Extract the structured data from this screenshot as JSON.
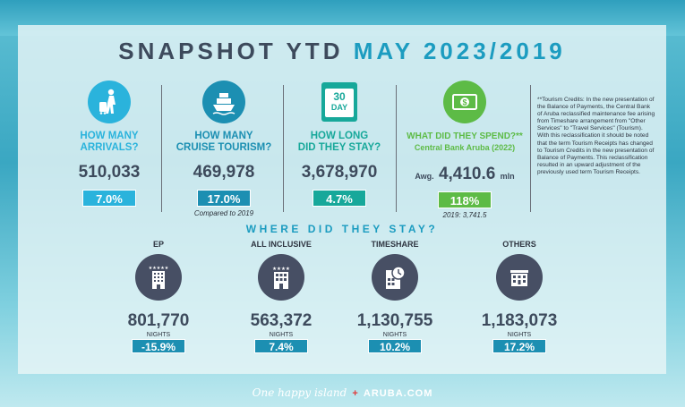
{
  "title": {
    "prefix": "SNAPSHOT YTD",
    "accent": "MAY 2023/2019"
  },
  "colors": {
    "arrivals": "#2ab3dc",
    "cruise": "#1c8fb2",
    "stay": "#17a89a",
    "spend": "#5dbb46",
    "dark": "#474f64"
  },
  "stats": [
    {
      "q1": "HOW MANY",
      "q2": "ARRIVALS?",
      "value": "510,033",
      "badge": "7.0%",
      "icon": "traveler-icon"
    },
    {
      "q1": "HOW MANY",
      "q2": "CRUISE TOURISM?",
      "value": "469,978",
      "badge": "17.0%",
      "note": "Compared to 2019",
      "icon": "ship-icon"
    },
    {
      "q1": "HOW LONG",
      "q2": "DID THEY STAY?",
      "value": "3,678,970",
      "badge": "4.7%",
      "icon": "calendar-icon",
      "cal_num": "30",
      "cal_day": "DAY"
    },
    {
      "q1": "WHAT DID THEY SPEND?**",
      "q2": "Central Bank Aruba (2022)",
      "value_prefix": "Awg.",
      "value": "4,410.6",
      "value_suffix": "mln",
      "badge": "118%",
      "note": "2019: 3,741.5",
      "icon": "dollar-bill-icon"
    }
  ],
  "footnote": "**Tourism Credits: In the new presentation of the Balance of Payments, the Central Bank of Aruba reclassified maintenance fee arising from Timeshare arrangement from \"Other Services\" to \"Travel Services\" (Tourism). With this reclassification it should be noted that the term Tourism Receipts has changed to Tourism Credits in the new presentation of Balance of Payments. This reclassification resulted in an upward adjustment of the previously used term Tourism Receipts.",
  "where_title": "WHERE DID THEY STAY?",
  "stays": [
    {
      "label": "EP",
      "value": "801,770",
      "unit": "NIGHTS",
      "badge": "-15.9%",
      "icon": "hotel-icon"
    },
    {
      "label": "ALL INCLUSIVE",
      "value": "563,372",
      "unit": "NIGHTS",
      "badge": "7.4%",
      "icon": "resort-icon"
    },
    {
      "label": "TIMESHARE",
      "value": "1,130,755",
      "unit": "NIGHTS",
      "badge": "10.2%",
      "icon": "timeshare-clock-icon"
    },
    {
      "label": "OTHERS",
      "value": "1,183,073",
      "unit": "NIGHTS",
      "badge": "17.2%",
      "icon": "building-icon"
    }
  ],
  "footer": {
    "script": "One happy island",
    "brand": "ARUBA.COM"
  }
}
